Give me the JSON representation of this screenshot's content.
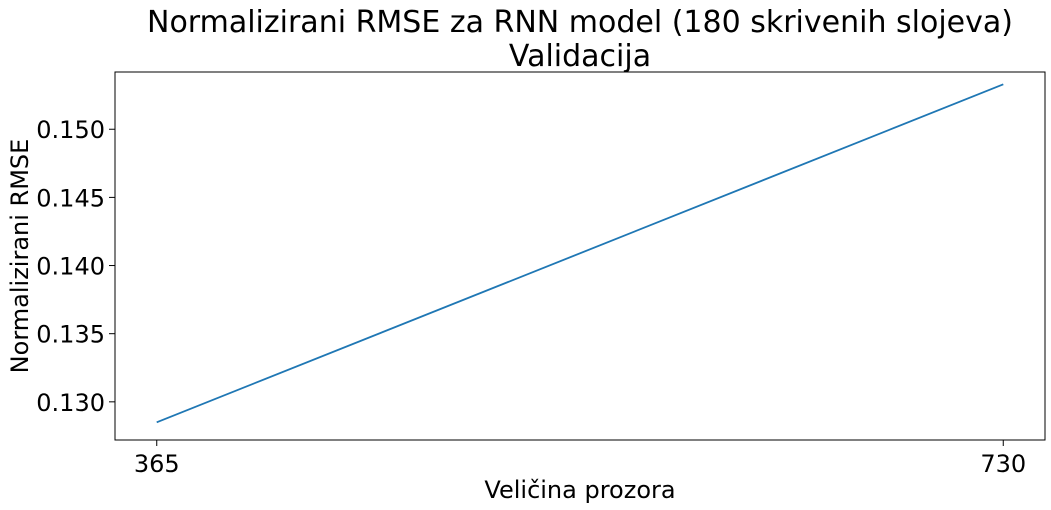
{
  "chart_data": {
    "type": "line",
    "title": "Normalizirani RMSE za RNN model (180 skrivenih slojeva)",
    "subtitle": "Validacija",
    "xlabel": "Veličina prozora",
    "ylabel": "Normalizirani RMSE",
    "x": [
      365,
      730
    ],
    "x_ticks": [
      "365",
      "730"
    ],
    "y_ticks": [
      "0.130",
      "0.135",
      "0.140",
      "0.145",
      "0.150"
    ],
    "xlim": [
      347,
      748
    ],
    "ylim": [
      0.1272,
      0.1542
    ],
    "grid": false,
    "series": [
      {
        "values": [
          0.1285,
          0.1533
        ],
        "color": "#1f77b4"
      }
    ]
  }
}
